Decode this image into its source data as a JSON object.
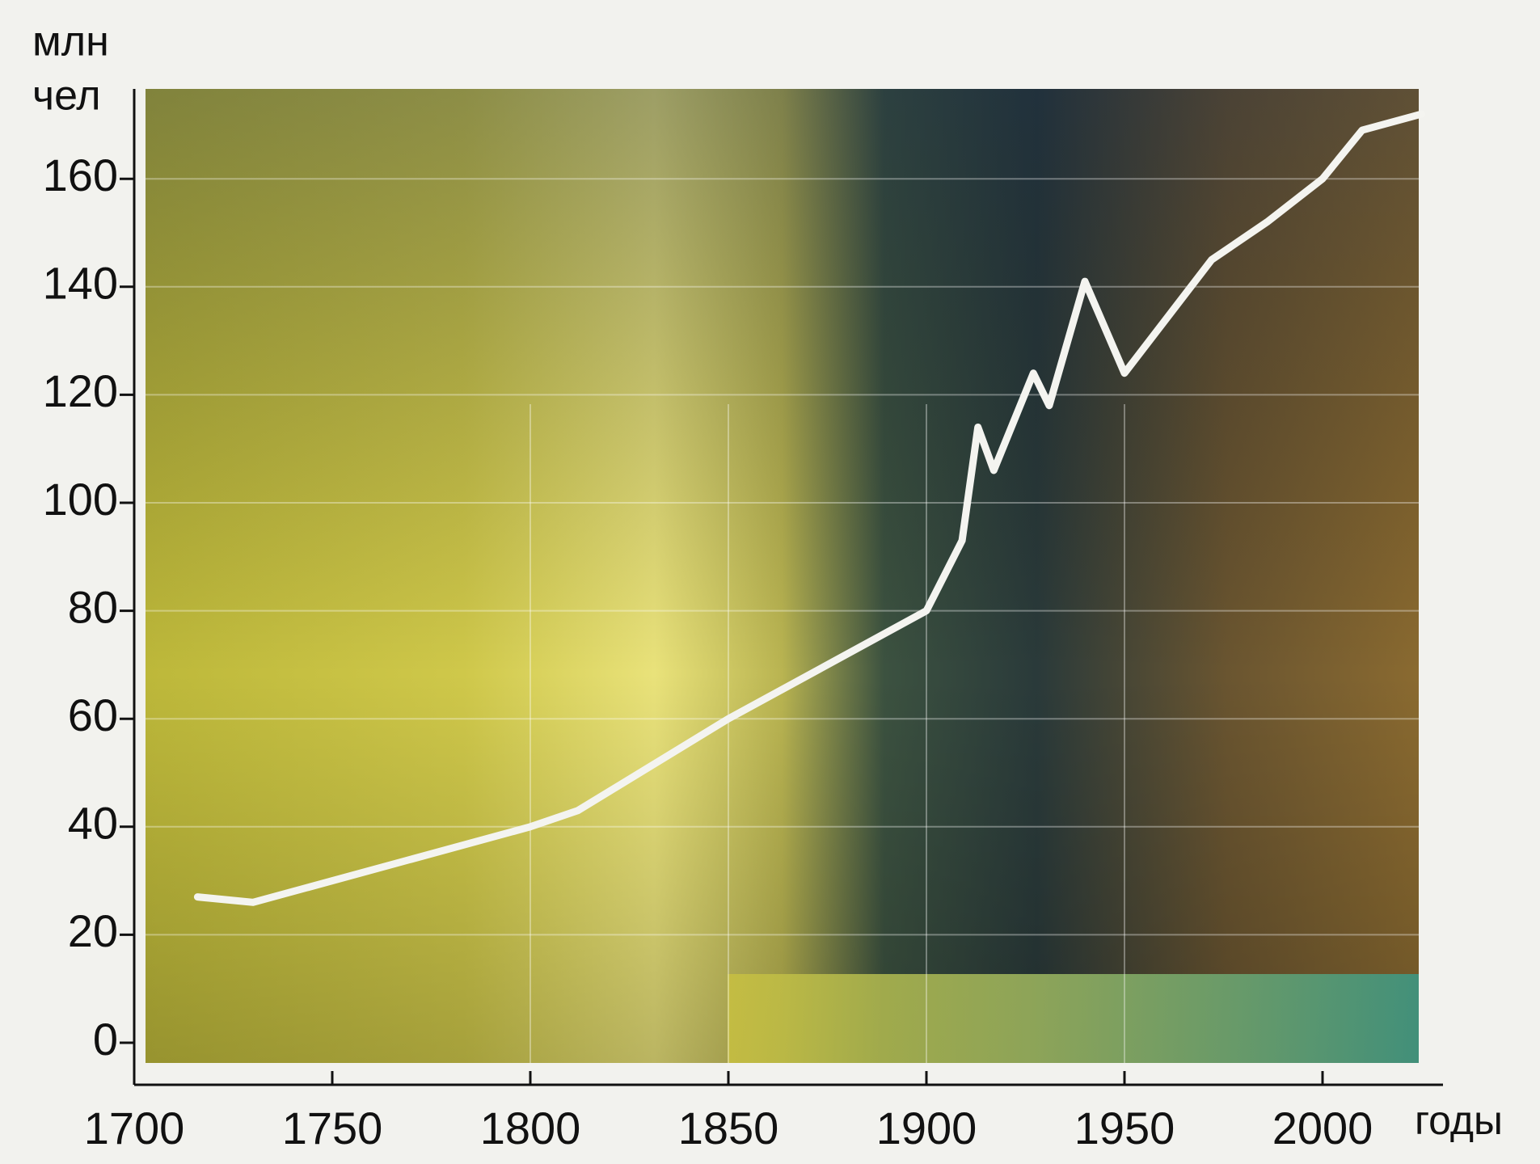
{
  "chart_data": {
    "type": "line",
    "y_unit_line1": "млн",
    "y_unit_line2": "чел",
    "x_label": "годы",
    "x": [
      1716,
      1730,
      1800,
      1812,
      1850,
      1900,
      1909,
      1913,
      1917,
      1927,
      1931,
      1940,
      1950,
      1972,
      1986,
      2000,
      2010,
      2025
    ],
    "series": [
      {
        "color": "#f4f4f0",
        "values": [
          27,
          26,
          40,
          43,
          60,
          80,
          93,
          114,
          106,
          124,
          118,
          141,
          124,
          145,
          152,
          160,
          169,
          172
        ]
      }
    ],
    "xlim": [
      1700,
      2030
    ],
    "xticks": [
      1700,
      1750,
      1800,
      1850,
      1900,
      1950,
      2000
    ],
    "ylim": [
      0,
      175
    ],
    "yticks": [
      0,
      20,
      40,
      60,
      80,
      100,
      120,
      140,
      160
    ],
    "grid": true
  }
}
